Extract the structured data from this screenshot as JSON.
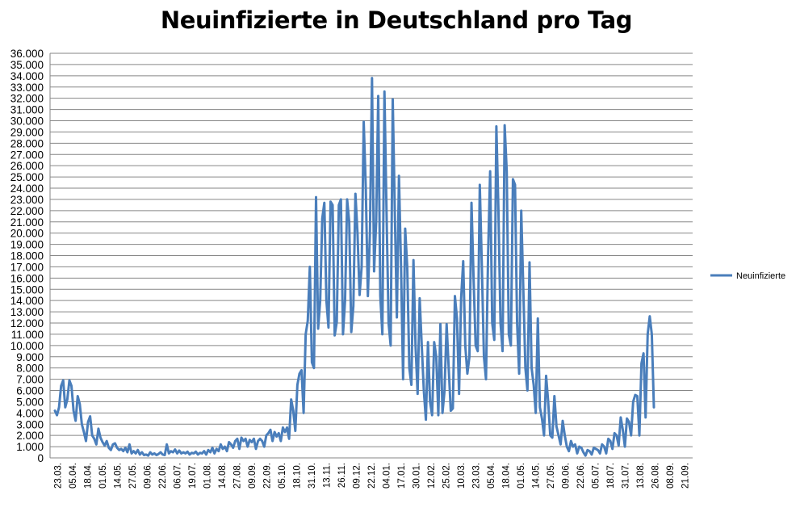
{
  "chart_data": {
    "type": "line",
    "title": "Neuinfizierte in Deutschland pro Tag",
    "xlabel": "",
    "ylabel": "",
    "ylim": [
      0,
      36000
    ],
    "y_ticks": [
      "0",
      "1.000",
      "2.000",
      "3.000",
      "4.000",
      "5.000",
      "6.000",
      "7.000",
      "8.000",
      "9.000",
      "10.000",
      "11.000",
      "12.000",
      "13.000",
      "14.000",
      "15.000",
      "16.000",
      "17.000",
      "18.000",
      "19.000",
      "20.000",
      "21.000",
      "22.000",
      "23.000",
      "24.000",
      "25.000",
      "26.000",
      "27.000",
      "28.000",
      "29.000",
      "30.000",
      "31.000",
      "32.000",
      "33.000",
      "34.000",
      "35.000",
      "36.000"
    ],
    "x_ticks": [
      "23.03.",
      "05.04.",
      "18.04.",
      "01.05.",
      "14.05.",
      "27.05.",
      "09.06.",
      "22.06.",
      "06.07.",
      "19.07.",
      "01.08.",
      "14.08.",
      "27.08.",
      "09.09.",
      "22.09.",
      "05.10.",
      "18.10.",
      "31.10.",
      "13.11.",
      "26.11.",
      "09.12.",
      "22.12.",
      "04.01.",
      "17.01.",
      "30.01.",
      "12.02.",
      "25.02.",
      "10.03.",
      "23.03.",
      "05.04.",
      "18.04.",
      "01.05.",
      "14.05.",
      "27.05.",
      "09.06.",
      "22.06.",
      "05.07.",
      "18.07.",
      "31.07.",
      "13.08.",
      "26.08.",
      "08.09.",
      "21.09."
    ],
    "legend": {
      "position": "right",
      "entries": [
        "Neuinfizierte"
      ]
    },
    "grid": true,
    "series": [
      {
        "name": "Neuinfizierte",
        "color": "#4a7ebb",
        "anchors": [
          [
            0,
            4200
          ],
          [
            1,
            3800
          ],
          [
            2,
            4500
          ],
          [
            3,
            6400
          ],
          [
            4,
            6900
          ],
          [
            5,
            4500
          ],
          [
            6,
            5200
          ],
          [
            7,
            6900
          ],
          [
            8,
            6400
          ],
          [
            9,
            4200
          ],
          [
            10,
            3300
          ],
          [
            11,
            5500
          ],
          [
            12,
            4800
          ],
          [
            13,
            3000
          ],
          [
            14,
            2300
          ],
          [
            15,
            1500
          ],
          [
            16,
            3200
          ],
          [
            17,
            3700
          ],
          [
            18,
            2000
          ],
          [
            19,
            1700
          ],
          [
            20,
            1200
          ],
          [
            21,
            2600
          ],
          [
            22,
            1800
          ],
          [
            23,
            1400
          ],
          [
            24,
            1100
          ],
          [
            25,
            1500
          ],
          [
            26,
            900
          ],
          [
            27,
            700
          ],
          [
            28,
            1200
          ],
          [
            29,
            1300
          ],
          [
            30,
            900
          ],
          [
            31,
            700
          ],
          [
            32,
            800
          ],
          [
            33,
            600
          ],
          [
            34,
            900
          ],
          [
            35,
            500
          ],
          [
            36,
            1200
          ],
          [
            37,
            400
          ],
          [
            38,
            600
          ],
          [
            39,
            400
          ],
          [
            40,
            700
          ],
          [
            41,
            300
          ],
          [
            42,
            500
          ],
          [
            43,
            250
          ],
          [
            44,
            300
          ],
          [
            45,
            200
          ],
          [
            46,
            500
          ],
          [
            47,
            300
          ],
          [
            48,
            400
          ],
          [
            49,
            250
          ],
          [
            50,
            350
          ],
          [
            51,
            500
          ],
          [
            52,
            300
          ],
          [
            53,
            250
          ],
          [
            54,
            1200
          ],
          [
            55,
            400
          ],
          [
            56,
            600
          ],
          [
            57,
            500
          ],
          [
            58,
            750
          ],
          [
            59,
            400
          ],
          [
            60,
            650
          ],
          [
            61,
            400
          ],
          [
            62,
            500
          ],
          [
            63,
            400
          ],
          [
            64,
            550
          ],
          [
            65,
            300
          ],
          [
            66,
            450
          ],
          [
            67,
            400
          ],
          [
            68,
            550
          ],
          [
            69,
            300
          ],
          [
            70,
            450
          ],
          [
            71,
            400
          ],
          [
            72,
            600
          ],
          [
            73,
            300
          ],
          [
            74,
            700
          ],
          [
            75,
            500
          ],
          [
            76,
            900
          ],
          [
            77,
            400
          ],
          [
            78,
            800
          ],
          [
            79,
            600
          ],
          [
            80,
            1200
          ],
          [
            81,
            800
          ],
          [
            82,
            1000
          ],
          [
            83,
            600
          ],
          [
            84,
            1400
          ],
          [
            85,
            1200
          ],
          [
            86,
            900
          ],
          [
            87,
            1500
          ],
          [
            88,
            1700
          ],
          [
            89,
            800
          ],
          [
            90,
            1800
          ],
          [
            91,
            1500
          ],
          [
            92,
            1700
          ],
          [
            93,
            1000
          ],
          [
            94,
            1600
          ],
          [
            95,
            1400
          ],
          [
            96,
            1700
          ],
          [
            97,
            800
          ],
          [
            98,
            1500
          ],
          [
            99,
            1700
          ],
          [
            100,
            1500
          ],
          [
            101,
            1000
          ],
          [
            102,
            2000
          ],
          [
            103,
            2200
          ],
          [
            104,
            2500
          ],
          [
            105,
            1500
          ],
          [
            106,
            2300
          ],
          [
            107,
            1900
          ],
          [
            108,
            2200
          ],
          [
            109,
            1500
          ],
          [
            110,
            2700
          ],
          [
            111,
            2300
          ],
          [
            112,
            2700
          ],
          [
            113,
            1700
          ],
          [
            114,
            5200
          ],
          [
            115,
            4200
          ],
          [
            116,
            2400
          ],
          [
            117,
            6500
          ],
          [
            118,
            7500
          ],
          [
            119,
            7800
          ],
          [
            120,
            4000
          ],
          [
            121,
            11000
          ],
          [
            122,
            12200
          ],
          [
            123,
            17000
          ],
          [
            124,
            8500
          ],
          [
            125,
            8000
          ],
          [
            126,
            23200
          ],
          [
            127,
            11500
          ],
          [
            128,
            14000
          ],
          [
            129,
            21300
          ],
          [
            130,
            22700
          ],
          [
            131,
            14000
          ],
          [
            132,
            11600
          ],
          [
            133,
            22800
          ],
          [
            134,
            22500
          ],
          [
            135,
            10900
          ],
          [
            136,
            12100
          ],
          [
            137,
            22500
          ],
          [
            138,
            23000
          ],
          [
            139,
            11000
          ],
          [
            140,
            14000
          ],
          [
            141,
            23000
          ],
          [
            142,
            21000
          ],
          [
            143,
            11200
          ],
          [
            144,
            13500
          ],
          [
            145,
            23500
          ],
          [
            146,
            20000
          ],
          [
            147,
            14500
          ],
          [
            148,
            17000
          ],
          [
            149,
            29900
          ],
          [
            150,
            24000
          ],
          [
            151,
            14400
          ],
          [
            152,
            20000
          ],
          [
            153,
            33800
          ],
          [
            154,
            16600
          ],
          [
            155,
            21000
          ],
          [
            156,
            32200
          ],
          [
            157,
            14400
          ],
          [
            158,
            11000
          ],
          [
            159,
            32600
          ],
          [
            160,
            22000
          ],
          [
            161,
            12000
          ],
          [
            162,
            10000
          ],
          [
            163,
            31900
          ],
          [
            164,
            22000
          ],
          [
            165,
            12500
          ],
          [
            166,
            25100
          ],
          [
            167,
            17000
          ],
          [
            168,
            7000
          ],
          [
            169,
            20400
          ],
          [
            170,
            17000
          ],
          [
            171,
            8000
          ],
          [
            172,
            6500
          ],
          [
            173,
            17600
          ],
          [
            174,
            10000
          ],
          [
            175,
            5700
          ],
          [
            176,
            14200
          ],
          [
            177,
            10000
          ],
          [
            178,
            6000
          ],
          [
            179,
            3400
          ],
          [
            180,
            10300
          ],
          [
            181,
            5000
          ],
          [
            182,
            3800
          ],
          [
            183,
            10300
          ],
          [
            184,
            9000
          ],
          [
            185,
            3800
          ],
          [
            186,
            11900
          ],
          [
            187,
            4000
          ],
          [
            188,
            6000
          ],
          [
            189,
            11900
          ],
          [
            190,
            8000
          ],
          [
            191,
            4200
          ],
          [
            192,
            4400
          ],
          [
            193,
            14400
          ],
          [
            194,
            12400
          ],
          [
            195,
            5700
          ],
          [
            196,
            14200
          ],
          [
            197,
            17500
          ],
          [
            198,
            10000
          ],
          [
            199,
            7500
          ],
          [
            200,
            9000
          ],
          [
            201,
            22700
          ],
          [
            202,
            16000
          ],
          [
            203,
            10000
          ],
          [
            204,
            9500
          ],
          [
            205,
            24300
          ],
          [
            206,
            17000
          ],
          [
            207,
            9000
          ],
          [
            208,
            7000
          ],
          [
            209,
            18000
          ],
          [
            210,
            25500
          ],
          [
            211,
            12000
          ],
          [
            212,
            10500
          ],
          [
            213,
            29500
          ],
          [
            214,
            22000
          ],
          [
            215,
            12000
          ],
          [
            216,
            9500
          ],
          [
            217,
            29600
          ],
          [
            218,
            25500
          ],
          [
            219,
            11000
          ],
          [
            220,
            10000
          ],
          [
            221,
            24800
          ],
          [
            222,
            24300
          ],
          [
            223,
            12000
          ],
          [
            224,
            7500
          ],
          [
            225,
            22000
          ],
          [
            226,
            15000
          ],
          [
            227,
            8000
          ],
          [
            228,
            6000
          ],
          [
            229,
            17400
          ],
          [
            230,
            8000
          ],
          [
            231,
            6500
          ],
          [
            232,
            4000
          ],
          [
            233,
            12400
          ],
          [
            234,
            4500
          ],
          [
            235,
            3500
          ],
          [
            236,
            2000
          ],
          [
            237,
            7300
          ],
          [
            238,
            5000
          ],
          [
            239,
            2000
          ],
          [
            240,
            1800
          ],
          [
            241,
            5500
          ],
          [
            242,
            2800
          ],
          [
            243,
            2000
          ],
          [
            244,
            1200
          ],
          [
            245,
            3300
          ],
          [
            246,
            2000
          ],
          [
            247,
            1000
          ],
          [
            248,
            600
          ],
          [
            249,
            1500
          ],
          [
            250,
            1000
          ],
          [
            251,
            1200
          ],
          [
            252,
            400
          ],
          [
            253,
            1000
          ],
          [
            254,
            900
          ],
          [
            255,
            500
          ],
          [
            256,
            200
          ],
          [
            257,
            700
          ],
          [
            258,
            600
          ],
          [
            259,
            300
          ],
          [
            260,
            900
          ],
          [
            261,
            800
          ],
          [
            262,
            700
          ],
          [
            263,
            400
          ],
          [
            264,
            1200
          ],
          [
            265,
            1000
          ],
          [
            266,
            400
          ],
          [
            267,
            1700
          ],
          [
            268,
            1500
          ],
          [
            269,
            800
          ],
          [
            270,
            2200
          ],
          [
            271,
            2000
          ],
          [
            272,
            1100
          ],
          [
            273,
            3600
          ],
          [
            274,
            2500
          ],
          [
            275,
            1000
          ],
          [
            276,
            3500
          ],
          [
            277,
            3200
          ],
          [
            278,
            2000
          ],
          [
            279,
            5000
          ],
          [
            280,
            5600
          ],
          [
            281,
            5500
          ],
          [
            282,
            2000
          ],
          [
            283,
            8400
          ],
          [
            284,
            9300
          ],
          [
            285,
            3600
          ],
          [
            286,
            11000
          ],
          [
            287,
            12600
          ],
          [
            288,
            11000
          ],
          [
            289,
            4500
          ]
        ]
      }
    ]
  }
}
